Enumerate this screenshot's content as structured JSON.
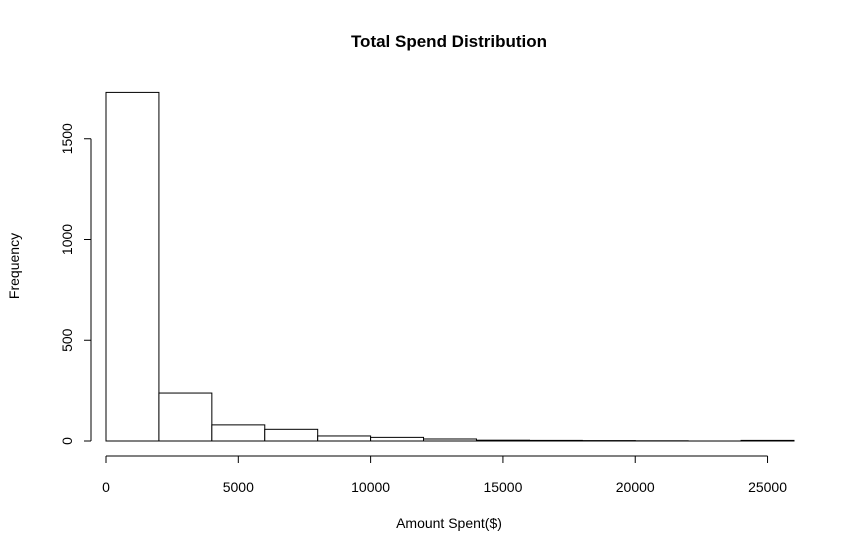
{
  "chart_data": {
    "type": "bar",
    "title": "Total Spend Distribution",
    "xlabel": "Amount Spent($)",
    "ylabel": "Frequency",
    "bin_edges": [
      0,
      2000,
      4000,
      6000,
      8000,
      10000,
      12000,
      14000,
      16000,
      18000,
      20000,
      22000,
      24000,
      26000
    ],
    "values": [
      1730,
      238,
      80,
      58,
      25,
      18,
      10,
      4,
      3,
      2,
      1,
      0,
      3
    ],
    "xlim": [
      0,
      26000
    ],
    "ylim": [
      0,
      1750
    ],
    "xticks": [
      0,
      5000,
      10000,
      15000,
      20000,
      25000
    ],
    "yticks": [
      0,
      500,
      1000,
      1500
    ],
    "grid": false,
    "colors": {
      "bar_fill": "#ffffff",
      "bar_stroke": "#000000"
    }
  }
}
